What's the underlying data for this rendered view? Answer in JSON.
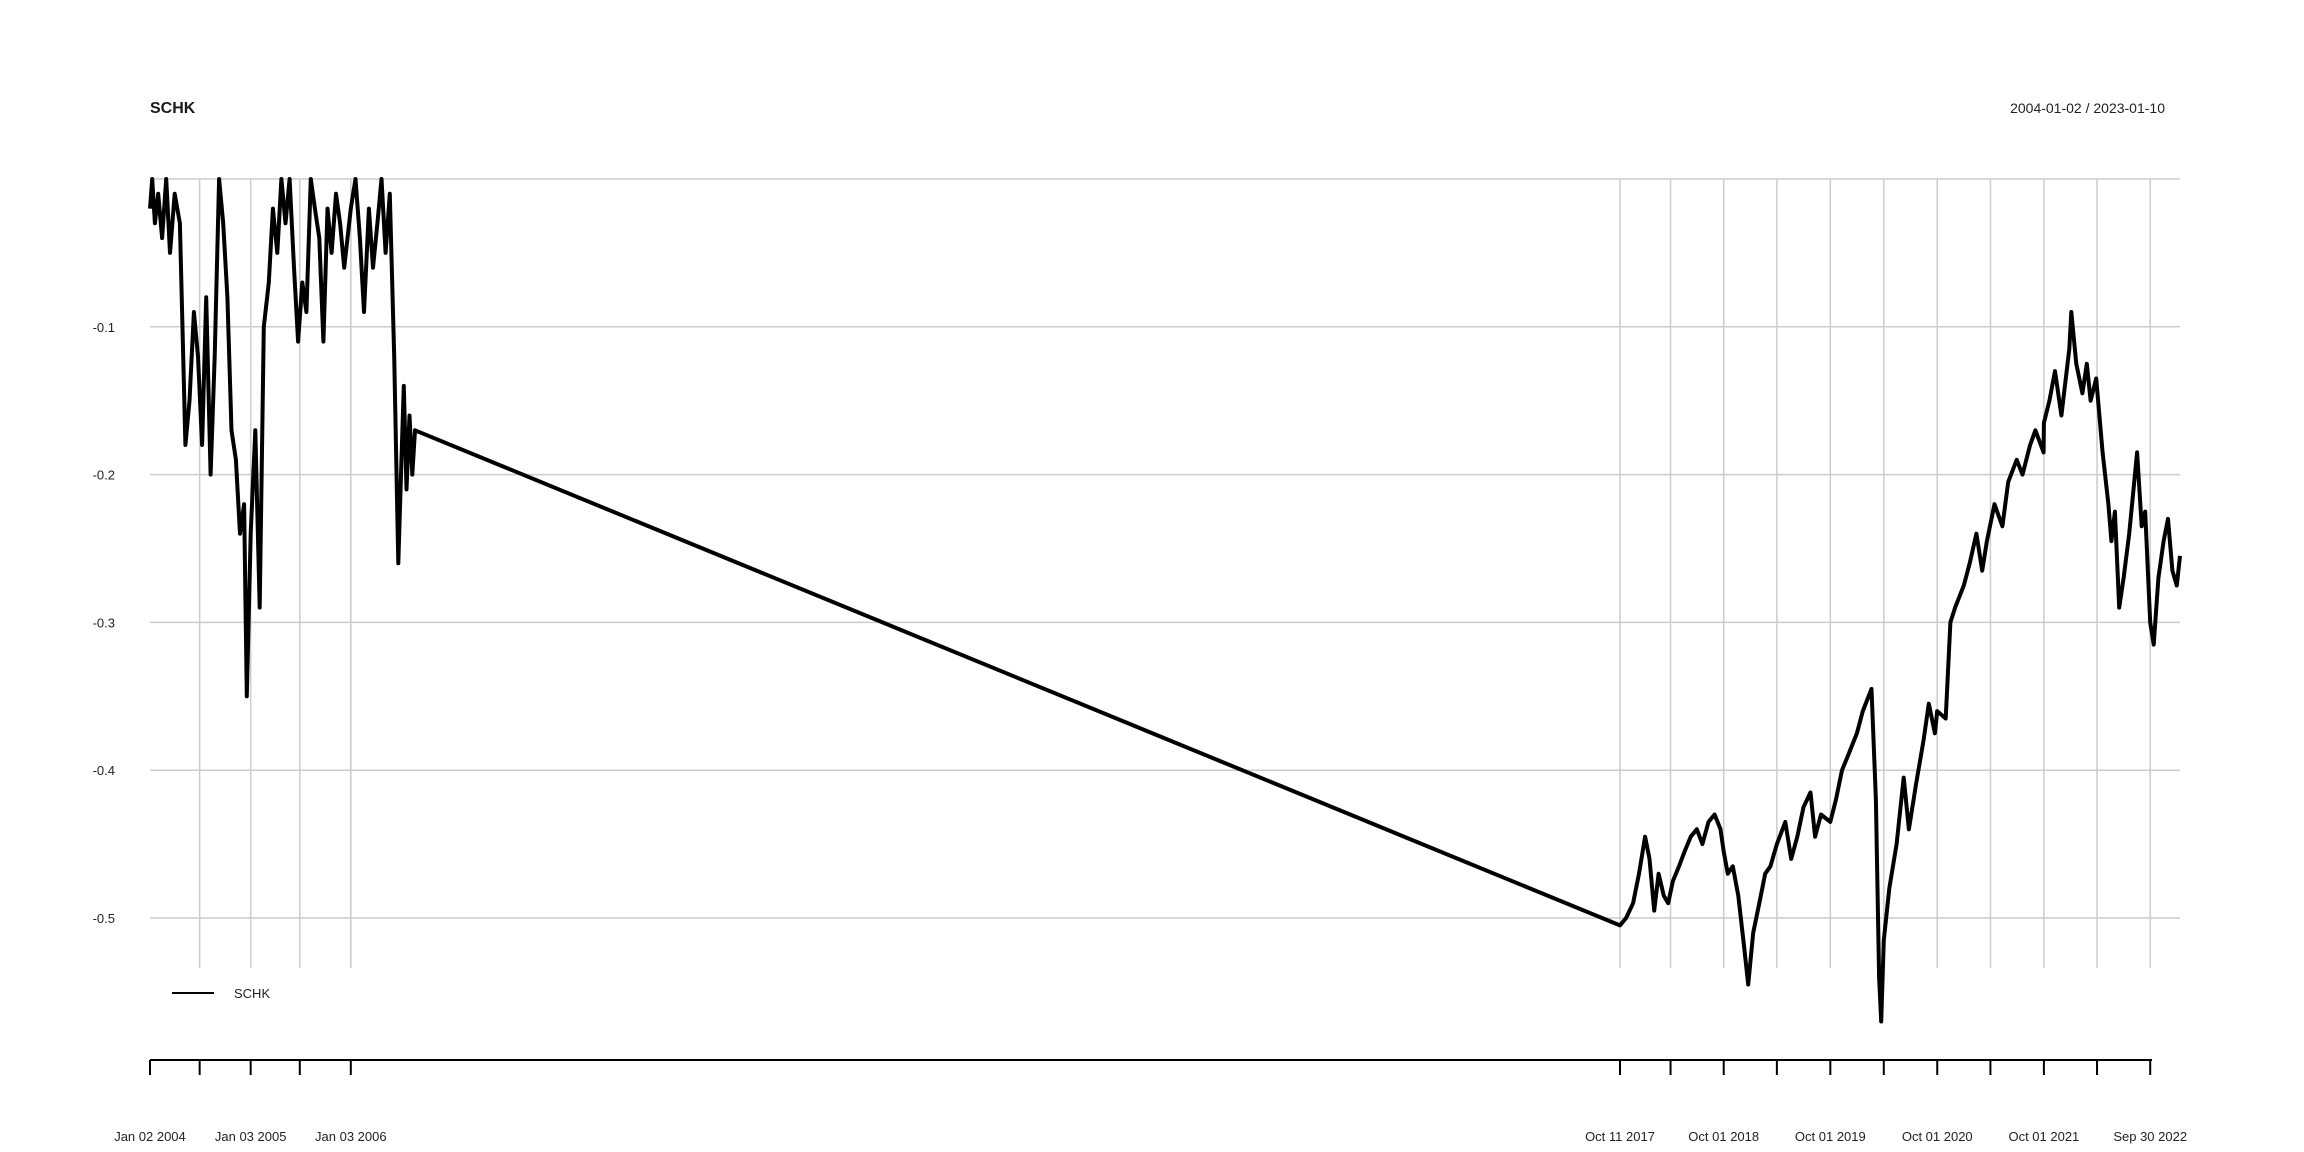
{
  "chart_data": {
    "type": "line",
    "title": "SCHK",
    "date_range": "2004-01-02 / 2023-01-10",
    "xlabel": "",
    "ylabel": "",
    "ylim": [
      -0.57,
      0.0
    ],
    "grid": true,
    "legend_position": "bottom-left",
    "y_ticks": [
      "-0.1",
      "-0.2",
      "-0.3",
      "-0.4",
      "-0.5"
    ],
    "y_tick_values": [
      -0.1,
      -0.2,
      -0.3,
      -0.4,
      -0.5
    ],
    "x_tick_labels": [
      "Jan 02 2004",
      "Jan 03 2005",
      "Jan 03 2006",
      "Oct 11 2017",
      "Oct 01 2018",
      "Oct 01 2019",
      "Oct 01 2020",
      "Oct 01 2021",
      "Sep 30 2022"
    ],
    "series": [
      {
        "name": "SCHK",
        "color": "#000000",
        "points": [
          [
            "2004-01-02",
            -0.02
          ],
          [
            "2004-01-10",
            0.0
          ],
          [
            "2004-01-20",
            -0.03
          ],
          [
            "2004-02-01",
            -0.01
          ],
          [
            "2004-02-15",
            -0.04
          ],
          [
            "2004-03-01",
            0.0
          ],
          [
            "2004-03-15",
            -0.05
          ],
          [
            "2004-04-01",
            -0.01
          ],
          [
            "2004-04-20",
            -0.03
          ],
          [
            "2004-05-10",
            -0.18
          ],
          [
            "2004-05-25",
            -0.15
          ],
          [
            "2004-06-10",
            -0.09
          ],
          [
            "2004-06-25",
            -0.12
          ],
          [
            "2004-07-10",
            -0.18
          ],
          [
            "2004-07-25",
            -0.08
          ],
          [
            "2004-08-10",
            -0.2
          ],
          [
            "2004-08-25",
            -0.12
          ],
          [
            "2004-09-10",
            0.0
          ],
          [
            "2004-09-25",
            -0.03
          ],
          [
            "2004-10-10",
            -0.08
          ],
          [
            "2004-10-25",
            -0.17
          ],
          [
            "2004-11-10",
            -0.19
          ],
          [
            "2004-11-25",
            -0.24
          ],
          [
            "2004-12-10",
            -0.22
          ],
          [
            "2004-12-20",
            -0.35
          ],
          [
            "2005-01-03",
            -0.24
          ],
          [
            "2005-01-20",
            -0.17
          ],
          [
            "2005-02-05",
            -0.29
          ],
          [
            "2005-02-20",
            -0.1
          ],
          [
            "2005-03-10",
            -0.07
          ],
          [
            "2005-03-25",
            -0.02
          ],
          [
            "2005-04-10",
            -0.05
          ],
          [
            "2005-04-25",
            0.0
          ],
          [
            "2005-05-10",
            -0.03
          ],
          [
            "2005-05-25",
            0.0
          ],
          [
            "2005-06-10",
            -0.06
          ],
          [
            "2005-06-25",
            -0.11
          ],
          [
            "2005-07-10",
            -0.07
          ],
          [
            "2005-07-25",
            -0.09
          ],
          [
            "2005-08-10",
            0.0
          ],
          [
            "2005-08-25",
            -0.02
          ],
          [
            "2005-09-10",
            -0.04
          ],
          [
            "2005-09-25",
            -0.11
          ],
          [
            "2005-10-10",
            -0.02
          ],
          [
            "2005-10-25",
            -0.05
          ],
          [
            "2005-11-10",
            -0.01
          ],
          [
            "2005-11-25",
            -0.03
          ],
          [
            "2005-12-10",
            -0.06
          ],
          [
            "2006-01-03",
            -0.02
          ],
          [
            "2006-01-20",
            0.0
          ],
          [
            "2006-02-05",
            -0.04
          ],
          [
            "2006-02-20",
            -0.09
          ],
          [
            "2006-03-10",
            -0.02
          ],
          [
            "2006-03-25",
            -0.06
          ],
          [
            "2006-04-10",
            -0.03
          ],
          [
            "2006-04-25",
            0.0
          ],
          [
            "2006-05-10",
            -0.05
          ],
          [
            "2006-05-25",
            -0.01
          ],
          [
            "2006-06-10",
            -0.12
          ],
          [
            "2006-06-25",
            -0.26
          ],
          [
            "2006-07-05",
            -0.2
          ],
          [
            "2006-07-15",
            -0.14
          ],
          [
            "2006-07-25",
            -0.21
          ],
          [
            "2006-08-05",
            -0.16
          ],
          [
            "2006-08-15",
            -0.2
          ],
          [
            "2006-08-25",
            -0.17
          ],
          [
            "2017-10-11",
            -0.505
          ],
          [
            "2017-11-01",
            -0.5
          ],
          [
            "2017-11-25",
            -0.49
          ],
          [
            "2017-12-15",
            -0.47
          ],
          [
            "2018-01-05",
            -0.445
          ],
          [
            "2018-01-20",
            -0.46
          ],
          [
            "2018-02-05",
            -0.495
          ],
          [
            "2018-02-20",
            -0.47
          ],
          [
            "2018-03-10",
            -0.485
          ],
          [
            "2018-03-25",
            -0.49
          ],
          [
            "2018-04-10",
            -0.475
          ],
          [
            "2018-05-01",
            -0.465
          ],
          [
            "2018-05-20",
            -0.455
          ],
          [
            "2018-06-10",
            -0.445
          ],
          [
            "2018-07-01",
            -0.44
          ],
          [
            "2018-07-20",
            -0.45
          ],
          [
            "2018-08-10",
            -0.435
          ],
          [
            "2018-08-31",
            -0.43
          ],
          [
            "2018-09-20",
            -0.44
          ],
          [
            "2018-10-01",
            -0.455
          ],
          [
            "2018-10-15",
            -0.47
          ],
          [
            "2018-11-01",
            -0.465
          ],
          [
            "2018-11-20",
            -0.485
          ],
          [
            "2018-12-10",
            -0.52
          ],
          [
            "2018-12-24",
            -0.545
          ],
          [
            "2019-01-10",
            -0.51
          ],
          [
            "2019-01-31",
            -0.49
          ],
          [
            "2019-02-20",
            -0.47
          ],
          [
            "2019-03-10",
            -0.465
          ],
          [
            "2019-04-01",
            -0.45
          ],
          [
            "2019-04-30",
            -0.435
          ],
          [
            "2019-05-20",
            -0.46
          ],
          [
            "2019-06-10",
            -0.445
          ],
          [
            "2019-07-01",
            -0.425
          ],
          [
            "2019-07-25",
            -0.415
          ],
          [
            "2019-08-10",
            -0.445
          ],
          [
            "2019-08-30",
            -0.43
          ],
          [
            "2019-10-01",
            -0.435
          ],
          [
            "2019-10-20",
            -0.42
          ],
          [
            "2019-11-10",
            -0.4
          ],
          [
            "2019-12-01",
            -0.39
          ],
          [
            "2019-12-31",
            -0.375
          ],
          [
            "2020-01-20",
            -0.36
          ],
          [
            "2020-02-19",
            -0.345
          ],
          [
            "2020-03-05",
            -0.42
          ],
          [
            "2020-03-16",
            -0.54
          ],
          [
            "2020-03-23",
            -0.57
          ],
          [
            "2020-04-01",
            -0.515
          ],
          [
            "2020-04-20",
            -0.48
          ],
          [
            "2020-05-15",
            -0.45
          ],
          [
            "2020-06-08",
            -0.405
          ],
          [
            "2020-06-26",
            -0.44
          ],
          [
            "2020-07-20",
            -0.41
          ],
          [
            "2020-08-15",
            -0.38
          ],
          [
            "2020-09-02",
            -0.355
          ],
          [
            "2020-09-23",
            -0.375
          ],
          [
            "2020-10-01",
            -0.36
          ],
          [
            "2020-10-30",
            -0.365
          ],
          [
            "2020-11-15",
            -0.3
          ],
          [
            "2020-12-01",
            -0.29
          ],
          [
            "2020-12-31",
            -0.275
          ],
          [
            "2021-01-20",
            -0.26
          ],
          [
            "2021-02-12",
            -0.24
          ],
          [
            "2021-03-04",
            -0.265
          ],
          [
            "2021-03-20",
            -0.245
          ],
          [
            "2021-04-15",
            -0.22
          ],
          [
            "2021-05-12",
            -0.235
          ],
          [
            "2021-06-01",
            -0.205
          ],
          [
            "2021-06-30",
            -0.19
          ],
          [
            "2021-07-20",
            -0.2
          ],
          [
            "2021-08-15",
            -0.18
          ],
          [
            "2021-09-02",
            -0.17
          ],
          [
            "2021-09-30",
            -0.185
          ],
          [
            "2021-10-01",
            -0.165
          ],
          [
            "2021-10-20",
            -0.15
          ],
          [
            "2021-11-08",
            -0.13
          ],
          [
            "2021-11-30",
            -0.16
          ],
          [
            "2021-12-27",
            -0.115
          ],
          [
            "2022-01-03",
            -0.09
          ],
          [
            "2022-01-20",
            -0.125
          ],
          [
            "2022-02-10",
            -0.145
          ],
          [
            "2022-02-25",
            -0.125
          ],
          [
            "2022-03-10",
            -0.15
          ],
          [
            "2022-03-29",
            -0.135
          ],
          [
            "2022-04-20",
            -0.185
          ],
          [
            "2022-05-10",
            -0.22
          ],
          [
            "2022-05-20",
            -0.245
          ],
          [
            "2022-06-01",
            -0.225
          ],
          [
            "2022-06-16",
            -0.29
          ],
          [
            "2022-07-01",
            -0.27
          ],
          [
            "2022-07-20",
            -0.24
          ],
          [
            "2022-08-16",
            -0.185
          ],
          [
            "2022-09-01",
            -0.235
          ],
          [
            "2022-09-13",
            -0.225
          ],
          [
            "2022-09-30",
            -0.3
          ],
          [
            "2022-10-12",
            -0.315
          ],
          [
            "2022-10-28",
            -0.27
          ],
          [
            "2022-11-15",
            -0.245
          ],
          [
            "2022-11-30",
            -0.23
          ],
          [
            "2022-12-15",
            -0.265
          ],
          [
            "2022-12-30",
            -0.275
          ],
          [
            "2023-01-10",
            -0.255
          ]
        ]
      }
    ]
  }
}
